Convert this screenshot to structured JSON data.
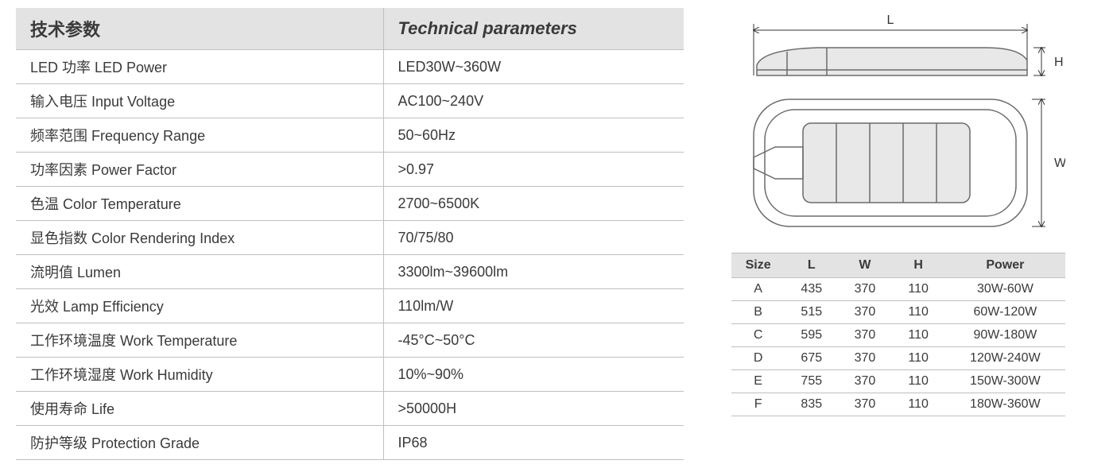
{
  "spec_table": {
    "header_left": "技术参数",
    "header_right": "Technical parameters",
    "rows": [
      {
        "label": "LED 功率 LED Power",
        "value": "LED30W~360W"
      },
      {
        "label": "输入电压 Input Voltage",
        "value": "AC100~240V"
      },
      {
        "label": "频率范围 Frequency Range",
        "value": "50~60Hz"
      },
      {
        "label": "功率因素 Power Factor",
        "value": ">0.97"
      },
      {
        "label": "色温 Color Temperature",
        "value": "2700~6500K"
      },
      {
        "label": "显色指数 Color Rendering Index",
        "value": "70/75/80"
      },
      {
        "label": "流明值 Lumen",
        "value": "3300lm~39600lm"
      },
      {
        "label": "光效 Lamp Efficiency",
        "value": "110lm/W"
      },
      {
        "label": "工作环境温度 Work Temperature",
        "value": "-45°C~50°C"
      },
      {
        "label": "工作环境湿度 Work Humidity",
        "value": "10%~90%"
      },
      {
        "label": "使用寿命 Life",
        "value": ">50000H"
      },
      {
        "label": "防护等级 Protection Grade",
        "value": "IP68"
      }
    ]
  },
  "diagram": {
    "labels": {
      "L": "L",
      "W": "W",
      "H": "H"
    },
    "stroke_color": "#6b6b6b",
    "fill_color": "#e8e8e8",
    "background_color": "#ffffff"
  },
  "size_table": {
    "columns": [
      "Size",
      "L",
      "W",
      "H",
      "Power"
    ],
    "rows": [
      [
        "A",
        "435",
        "370",
        "110",
        "30W-60W"
      ],
      [
        "B",
        "515",
        "370",
        "110",
        "60W-120W"
      ],
      [
        "C",
        "595",
        "370",
        "110",
        "90W-180W"
      ],
      [
        "D",
        "675",
        "370",
        "110",
        "120W-240W"
      ],
      [
        "E",
        "755",
        "370",
        "110",
        "150W-300W"
      ],
      [
        "F",
        "835",
        "370",
        "110",
        "180W-360W"
      ]
    ],
    "column_widths_pct": [
      16,
      16,
      16,
      16,
      36
    ],
    "header_bg": "#e3e3e3",
    "border_color": "#bfbfbf",
    "text_color": "#3a3a3a"
  },
  "colors": {
    "header_bg": "#e3e3e3",
    "border": "#bfbfbf",
    "text": "#3a3a3a",
    "page_bg": "#ffffff"
  }
}
